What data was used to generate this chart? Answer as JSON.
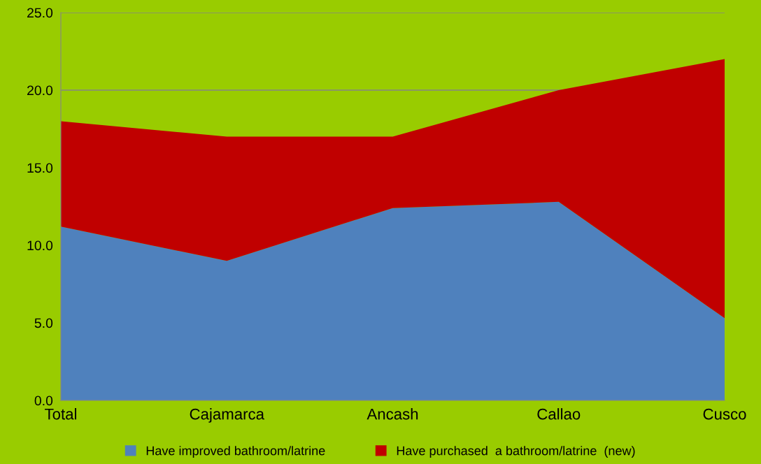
{
  "chart_data": {
    "type": "area",
    "stacked": true,
    "categories": [
      "Total",
      "Cajamarca",
      "Ancash",
      "Callao",
      "Cusco"
    ],
    "series": [
      {
        "name": "Have improved bathroom/latrine",
        "color": "#4f81bd",
        "values": [
          11.2,
          9.0,
          12.4,
          12.8,
          5.3
        ]
      },
      {
        "name": "Have purchased  a bathroom/latrine  (new)",
        "color": "#c00000",
        "values": [
          6.8,
          8.0,
          4.6,
          7.2,
          16.7
        ]
      }
    ],
    "ylim": [
      0,
      25
    ],
    "yticks": [
      {
        "value": 0,
        "label": "0.0"
      },
      {
        "value": 5,
        "label": "5.0"
      },
      {
        "value": 10,
        "label": "10.0"
      },
      {
        "value": 15,
        "label": "15.0"
      },
      {
        "value": 20,
        "label": "20.0"
      },
      {
        "value": 25,
        "label": "25.0"
      }
    ],
    "grid": "y",
    "legend": "bottom"
  }
}
